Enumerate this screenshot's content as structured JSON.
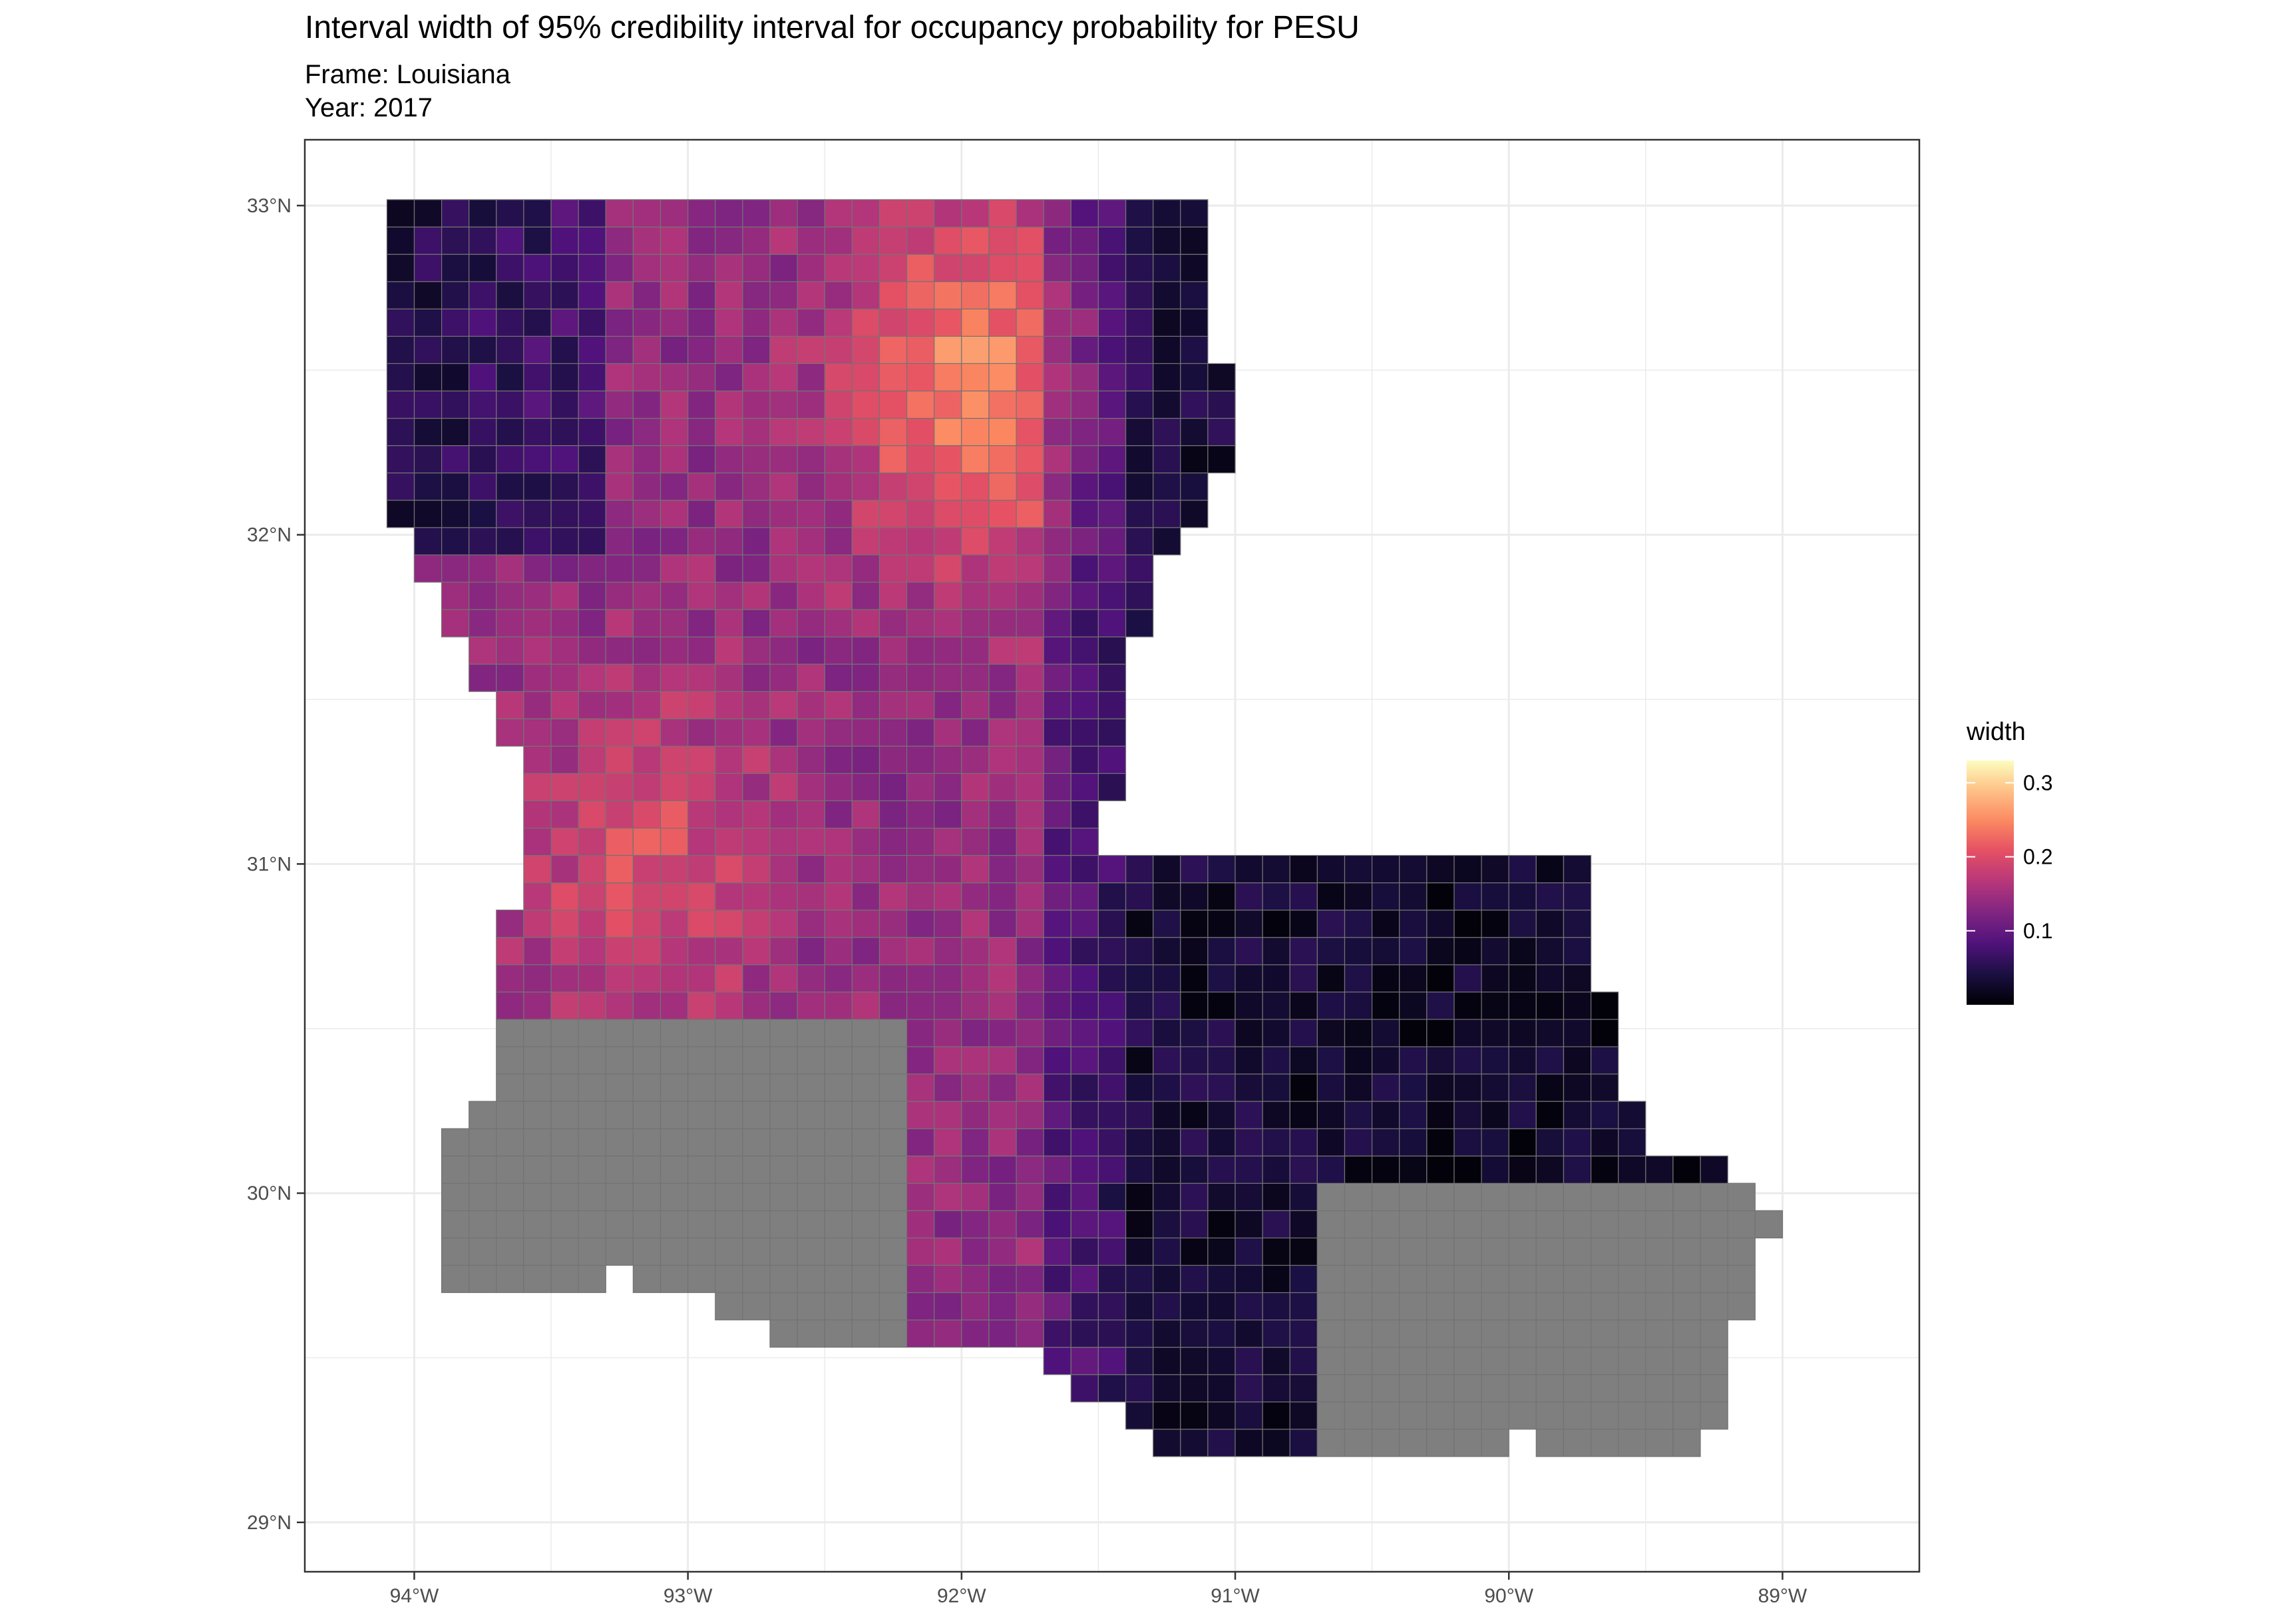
{
  "title": "Interval width of 95% credibility interval for occupancy probability for PESU",
  "subtitle_frame": "Frame: Louisiana",
  "subtitle_year": "Year: 2017",
  "chart_data": {
    "type": "heatmap",
    "map_kind": "choropleth grid over Louisiana",
    "x_ticks": [
      {
        "lon": -94,
        "label": "94°W"
      },
      {
        "lon": -93,
        "label": "93°W"
      },
      {
        "lon": -92,
        "label": "92°W"
      },
      {
        "lon": -91,
        "label": "91°W"
      },
      {
        "lon": -90,
        "label": "90°W"
      },
      {
        "lon": -89,
        "label": "89°W"
      }
    ],
    "y_ticks": [
      {
        "lat": 33,
        "label": "33°N"
      },
      {
        "lat": 32,
        "label": "32°N"
      },
      {
        "lat": 31,
        "label": "31°N"
      },
      {
        "lat": 30,
        "label": "30°N"
      },
      {
        "lat": 29,
        "label": "29°N"
      }
    ],
    "xlim": [
      -94.4,
      -88.5
    ],
    "ylim": [
      28.85,
      33.2
    ],
    "grid": true,
    "legend": {
      "title": "width",
      "placement": "right",
      "scale": "magma",
      "range": [
        0,
        0.33
      ],
      "ticks": [
        {
          "value": 0.1,
          "label": "0.1"
        },
        {
          "value": 0.2,
          "label": "0.2"
        },
        {
          "value": 0.3,
          "label": "0.3"
        }
      ]
    },
    "missing_color": "#7f7f7f",
    "colors": {
      "panel_border": "#333333",
      "gridline": "#ebebeb",
      "cell_border": "#737373"
    },
    "pattern": "widths highest (0.2–0.33) in the north-central region around 92°W, moderate (0.15–0.22) across the west, low (~0.1) in the northwest corner, very low (<0.05) east of 91°W; southern coastal cells shown grey (no data)"
  }
}
